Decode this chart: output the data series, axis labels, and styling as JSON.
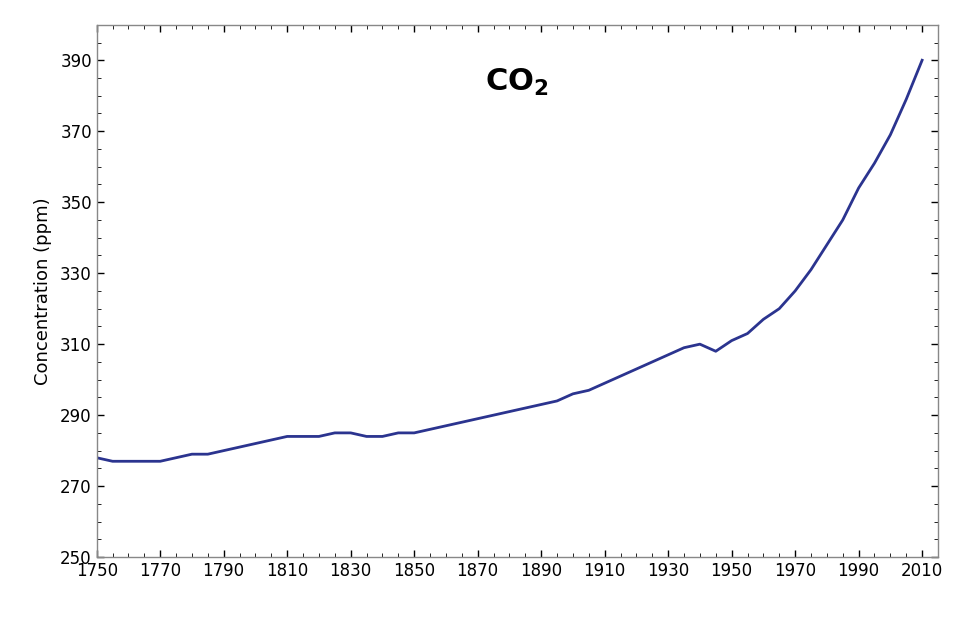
{
  "ylabel": "Concentration (ppm)",
  "xlim": [
    1750,
    2015
  ],
  "ylim": [
    250,
    400
  ],
  "xticks": [
    1750,
    1770,
    1790,
    1810,
    1830,
    1850,
    1870,
    1890,
    1910,
    1930,
    1950,
    1970,
    1990,
    2010
  ],
  "yticks": [
    250,
    270,
    290,
    310,
    330,
    350,
    370,
    390
  ],
  "line_color": "#2b348f",
  "line_width": 2.0,
  "spine_color": "#888888",
  "years": [
    1750,
    1755,
    1760,
    1765,
    1770,
    1775,
    1780,
    1785,
    1790,
    1795,
    1800,
    1805,
    1810,
    1815,
    1820,
    1825,
    1830,
    1835,
    1840,
    1845,
    1850,
    1855,
    1860,
    1865,
    1870,
    1875,
    1880,
    1885,
    1890,
    1895,
    1900,
    1905,
    1910,
    1915,
    1920,
    1925,
    1930,
    1935,
    1940,
    1945,
    1950,
    1955,
    1960,
    1965,
    1970,
    1975,
    1980,
    1985,
    1990,
    1995,
    2000,
    2005,
    2010
  ],
  "co2": [
    278,
    277,
    277,
    277,
    277,
    278,
    279,
    279,
    280,
    281,
    282,
    283,
    284,
    284,
    284,
    285,
    285,
    284,
    284,
    285,
    285,
    286,
    287,
    288,
    289,
    290,
    291,
    292,
    293,
    294,
    296,
    297,
    299,
    301,
    303,
    305,
    307,
    309,
    310,
    308,
    311,
    313,
    317,
    320,
    325,
    331,
    338,
    345,
    354,
    361,
    369,
    379,
    390
  ]
}
